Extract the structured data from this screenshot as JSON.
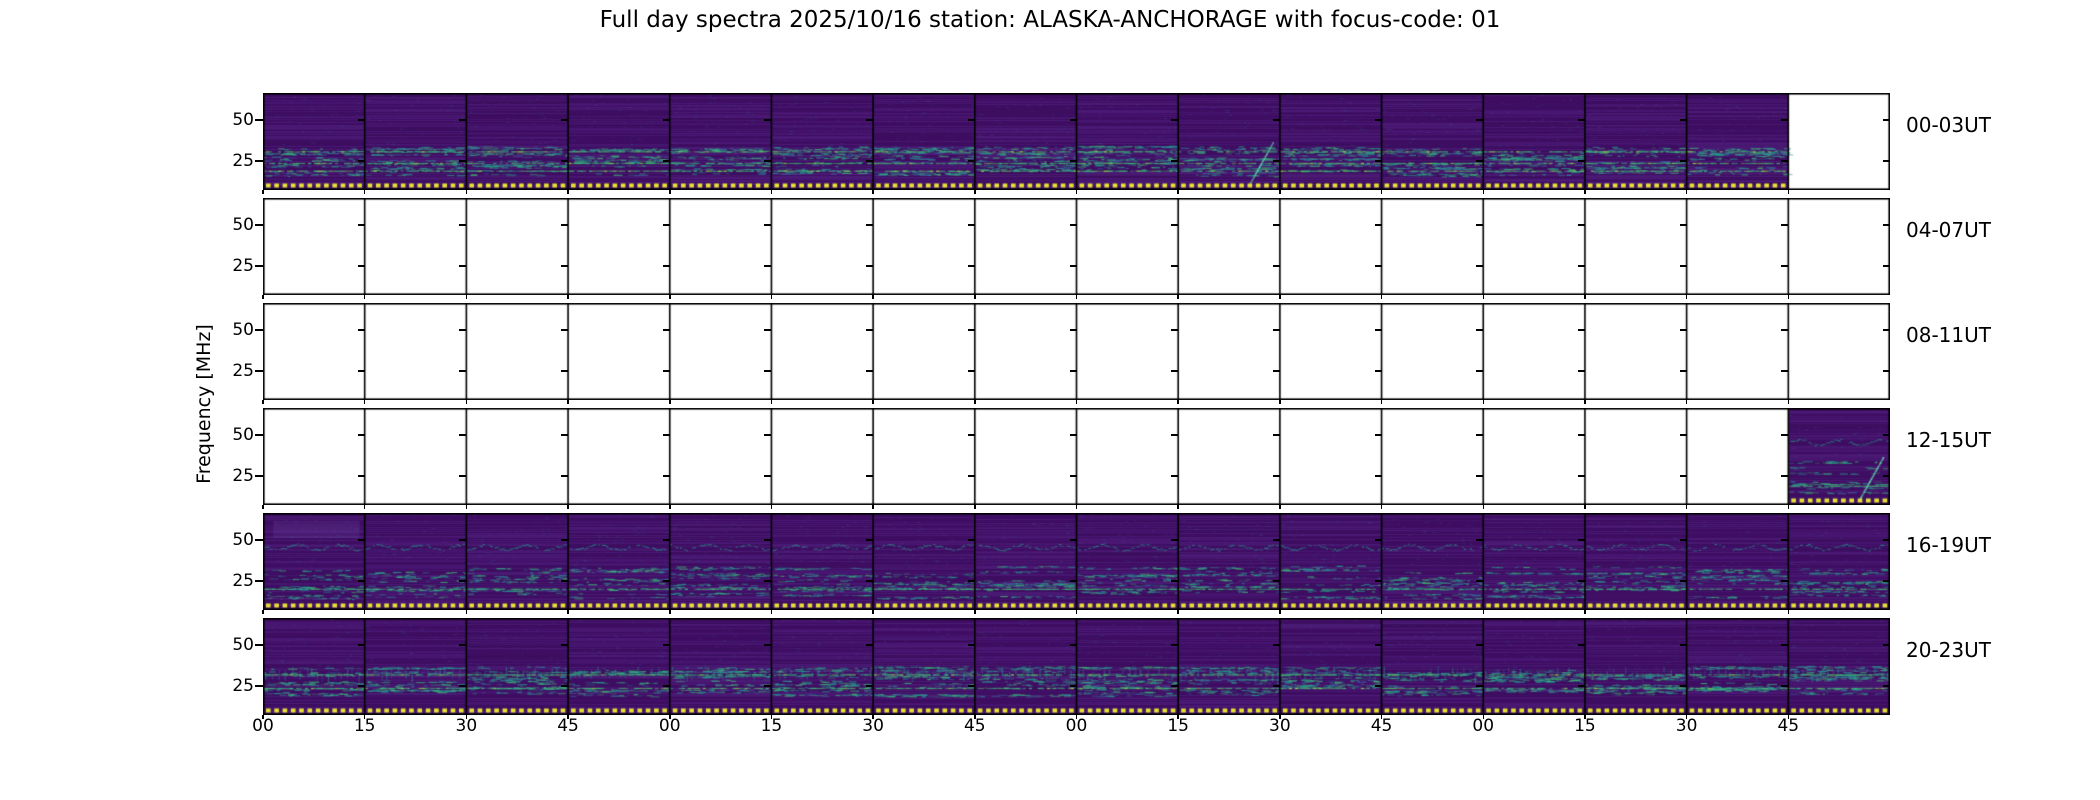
{
  "title": "Full day spectra 2025/10/16 station: ALASKA-ANCHORAGE with focus-code: 01",
  "ylabel": "Frequency [MHz]",
  "colors": {
    "figure_background": "#ffffff",
    "axes_edge": "#000000",
    "spectrogram_background": "#420f68",
    "striation_light": "#8a6fd0",
    "striation_dark": "#1c052f",
    "faint_blue": "#3c6aa0",
    "speckle_teal": "#26998c",
    "speckle_green": "#3fb873",
    "bright_line": "#8ed645",
    "bottom_dashes": "#e5e331"
  },
  "chart_data": {
    "type": "heatmap",
    "title": "Full day spectra 2025/10/16 station: ALASKA-ANCHORAGE with focus-code: 01",
    "date": "2025/10/16",
    "station": "ALASKA-ANCHORAGE",
    "focus_code": "01",
    "colormap": "viridis",
    "ylabel": "Frequency [MHz]",
    "y_tick_labels": [
      "50",
      "25"
    ],
    "y_ticks_mhz": [
      50,
      25
    ],
    "x_tick_labels": [
      "00",
      "15",
      "30",
      "45",
      "00",
      "15",
      "30",
      "45",
      "00",
      "15",
      "30",
      "45",
      "00",
      "15",
      "30",
      "45"
    ],
    "x_units": "minutes",
    "segments_per_row": 16,
    "segment_duration_min": 15,
    "rows": [
      {
        "label": "00-03UT",
        "segments_filled": [
          1,
          1,
          1,
          1,
          1,
          1,
          1,
          1,
          1,
          1,
          1,
          1,
          1,
          1,
          1,
          0
        ],
        "texture": {
          "band": [
            0.55,
            0.85
          ],
          "bandRows": 14,
          "strong": 3,
          "strongY": [
            0.6,
            0.72,
            0.8
          ],
          "hot": true
        }
      },
      {
        "label": "04-07UT",
        "segments_filled": [
          0,
          0,
          0,
          0,
          0,
          0,
          0,
          0,
          0,
          0,
          0,
          0,
          0,
          0,
          0,
          0
        ],
        "texture": null
      },
      {
        "label": "08-11UT",
        "segments_filled": [
          0,
          0,
          0,
          0,
          0,
          0,
          0,
          0,
          0,
          0,
          0,
          0,
          0,
          0,
          0,
          0
        ],
        "texture": null
      },
      {
        "label": "12-15UT",
        "segments_filled": [
          0,
          0,
          0,
          0,
          0,
          0,
          0,
          0,
          0,
          0,
          0,
          0,
          0,
          0,
          0,
          1
        ],
        "texture": {
          "band": [
            0.55,
            0.88
          ],
          "bandRows": 9,
          "strong": 1,
          "strongY": [
            0.8
          ],
          "hot": false,
          "wavy": true
        }
      },
      {
        "label": "16-19UT",
        "segments_filled": [
          1,
          1,
          1,
          1,
          1,
          1,
          1,
          1,
          1,
          1,
          1,
          1,
          1,
          1,
          1,
          1
        ],
        "texture": {
          "band": [
            0.55,
            0.88
          ],
          "bandRows": 10,
          "strong": 1,
          "strongY": [
            0.78
          ],
          "hot": false,
          "wavy": true,
          "patch_segments": [
            0
          ]
        }
      },
      {
        "label": "20-23UT",
        "segments_filled": [
          1,
          1,
          1,
          1,
          1,
          1,
          1,
          1,
          1,
          1,
          1,
          1,
          1,
          1,
          1,
          1
        ],
        "texture": {
          "band": [
            0.5,
            0.8
          ],
          "bandRows": 14,
          "strong": 2,
          "strongY": [
            0.58,
            0.72
          ],
          "hot": true,
          "vert": true
        }
      }
    ],
    "diagonal_burst_segments": [
      [
        0,
        9
      ],
      [
        3,
        15
      ]
    ]
  }
}
